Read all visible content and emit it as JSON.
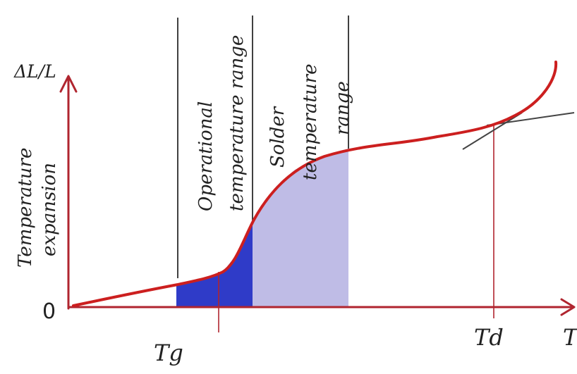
{
  "labels": {
    "y_axis": "ΔL/L",
    "y_title_line1": "Temperature",
    "y_title_line2": "expansion",
    "origin": "0",
    "x_axis": "T",
    "tg": "Tg",
    "td": "Td",
    "operational_line1": "Operational",
    "operational_line2": "temperature range",
    "solder_line1": "Solder",
    "solder_line2": "temperature",
    "solder_line3": "range"
  },
  "colors": {
    "axis": "#b0252f",
    "curve": "#cc1f1f",
    "operational_fill": "#2f3bc8",
    "solder_fill": "#bfbce6",
    "divider": "#111111",
    "tangent": "#444444"
  }
}
